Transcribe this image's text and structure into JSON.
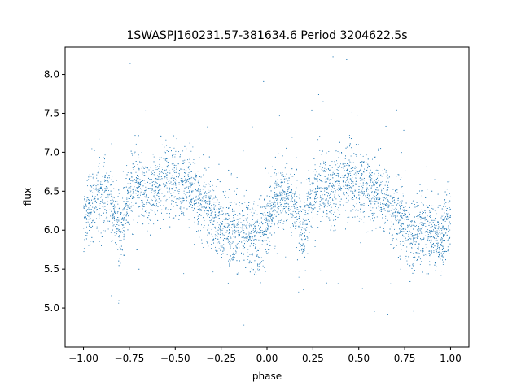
{
  "chart_data": {
    "type": "scatter",
    "title": "1SWASPJ160231.57-381634.6 Period 3204622.5s",
    "xlabel": "phase",
    "ylabel": "flux",
    "xlim": [
      -1.1,
      1.1
    ],
    "ylim": [
      4.5,
      8.35
    ],
    "xticks": [
      -1.0,
      -0.75,
      -0.5,
      -0.25,
      0.0,
      0.25,
      0.5,
      0.75,
      1.0
    ],
    "xtick_labels": [
      "−1.00",
      "−0.75",
      "−0.50",
      "−0.25",
      "0.00",
      "0.25",
      "0.50",
      "0.75",
      "1.00"
    ],
    "yticks": [
      5.0,
      5.5,
      6.0,
      6.5,
      7.0,
      7.5,
      8.0
    ],
    "ytick_labels": [
      "5.0",
      "5.5",
      "6.0",
      "6.5",
      "7.0",
      "7.5",
      "8.0"
    ],
    "grid": false,
    "marker_color": "#1f77b4",
    "series": [
      {
        "phase_profile": [
          {
            "x": 0.0,
            "y": 6.15
          },
          {
            "x": 0.05,
            "y": 6.35
          },
          {
            "x": 0.1,
            "y": 6.45
          },
          {
            "x": 0.15,
            "y": 6.35
          },
          {
            "x": 0.2,
            "y": 5.9
          },
          {
            "x": 0.25,
            "y": 6.5
          },
          {
            "x": 0.3,
            "y": 6.6
          },
          {
            "x": 0.35,
            "y": 6.45
          },
          {
            "x": 0.4,
            "y": 6.6
          },
          {
            "x": 0.45,
            "y": 6.7
          },
          {
            "x": 0.5,
            "y": 6.6
          },
          {
            "x": 0.55,
            "y": 6.55
          },
          {
            "x": 0.6,
            "y": 6.5
          },
          {
            "x": 0.65,
            "y": 6.35
          },
          {
            "x": 0.7,
            "y": 6.2
          },
          {
            "x": 0.75,
            "y": 6.05
          },
          {
            "x": 0.8,
            "y": 6.0
          },
          {
            "x": 0.85,
            "y": 5.95
          },
          {
            "x": 0.9,
            "y": 5.95
          },
          {
            "x": 0.95,
            "y": 5.85
          },
          {
            "x": 1.0,
            "y": 6.15
          }
        ]
      }
    ]
  }
}
